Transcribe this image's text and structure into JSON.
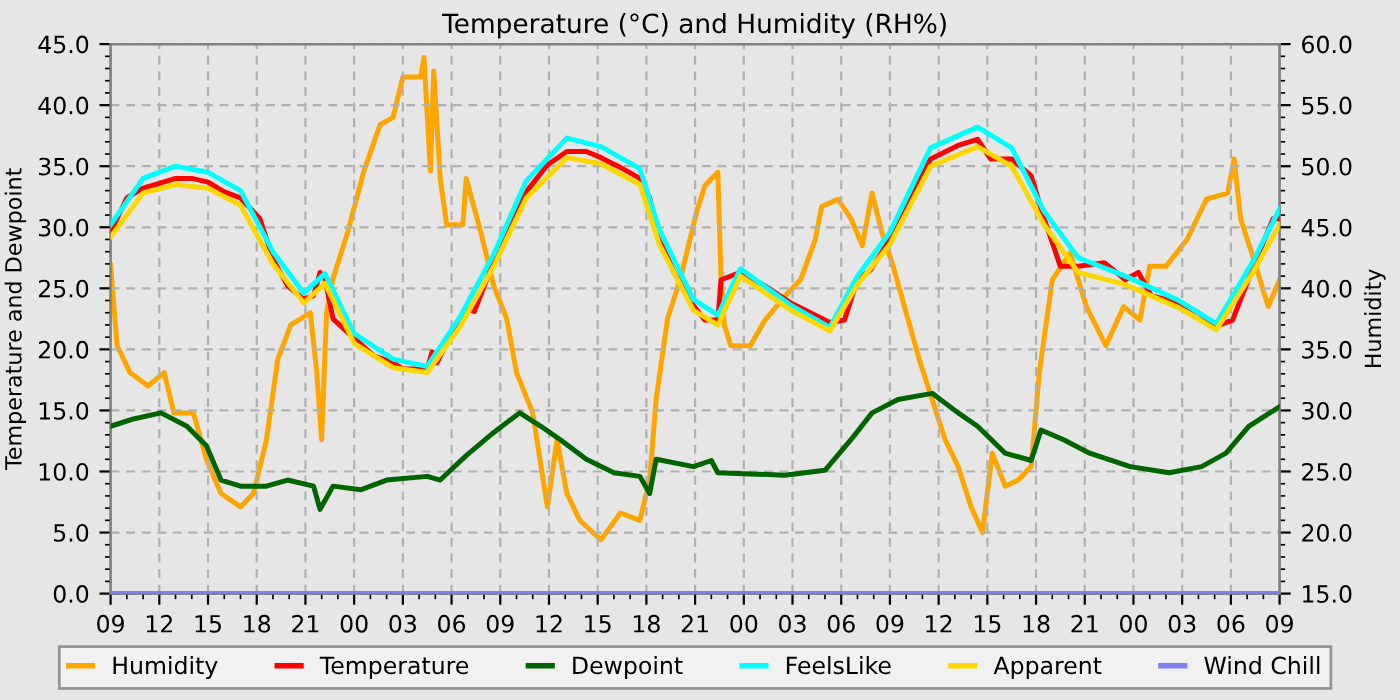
{
  "chart_data": {
    "type": "line",
    "title": "Temperature (°C) and Humidity (RH%)",
    "ylabel": "Temperature and Dewpoint",
    "y2label": "Humidity",
    "xlim": [
      9,
      81
    ],
    "xticks": [
      {
        "value": 9,
        "label": "09"
      },
      {
        "value": 12,
        "label": "12"
      },
      {
        "value": 15,
        "label": "15"
      },
      {
        "value": 18,
        "label": "18"
      },
      {
        "value": 21,
        "label": "21"
      },
      {
        "value": 24,
        "label": "00"
      },
      {
        "value": 27,
        "label": "03"
      },
      {
        "value": 30,
        "label": "06"
      },
      {
        "value": 33,
        "label": "09"
      },
      {
        "value": 36,
        "label": "12"
      },
      {
        "value": 39,
        "label": "15"
      },
      {
        "value": 42,
        "label": "18"
      },
      {
        "value": 45,
        "label": "21"
      },
      {
        "value": 48,
        "label": "00"
      },
      {
        "value": 51,
        "label": "03"
      },
      {
        "value": 54,
        "label": "06"
      },
      {
        "value": 57,
        "label": "09"
      },
      {
        "value": 60,
        "label": "12"
      },
      {
        "value": 63,
        "label": "15"
      },
      {
        "value": 66,
        "label": "18"
      },
      {
        "value": 69,
        "label": "21"
      },
      {
        "value": 72,
        "label": "00"
      },
      {
        "value": 75,
        "label": "03"
      },
      {
        "value": 78,
        "label": "06"
      },
      {
        "value": 81,
        "label": "09"
      }
    ],
    "ylim": [
      0,
      45
    ],
    "yticks": [
      {
        "value": 0,
        "label": "0.0"
      },
      {
        "value": 5,
        "label": "5.0"
      },
      {
        "value": 10,
        "label": "10.0"
      },
      {
        "value": 15,
        "label": "15.0"
      },
      {
        "value": 20,
        "label": "20.0"
      },
      {
        "value": 25,
        "label": "25.0"
      },
      {
        "value": 30,
        "label": "30.0"
      },
      {
        "value": 35,
        "label": "35.0"
      },
      {
        "value": 40,
        "label": "40.0"
      },
      {
        "value": 45,
        "label": "45.0"
      }
    ],
    "y2lim": [
      15,
      60
    ],
    "y2ticks": [
      {
        "value": 15,
        "label": "15.0"
      },
      {
        "value": 20,
        "label": "20.0"
      },
      {
        "value": 25,
        "label": "25.0"
      },
      {
        "value": 30,
        "label": "30.0"
      },
      {
        "value": 35,
        "label": "35.0"
      },
      {
        "value": 40,
        "label": "40.0"
      },
      {
        "value": 45,
        "label": "45.0"
      },
      {
        "value": 50,
        "label": "50.0"
      },
      {
        "value": 55,
        "label": "55.0"
      },
      {
        "value": 60,
        "label": "60.0"
      }
    ],
    "grid": true,
    "legend": "bottom",
    "line_style": "solid",
    "marker": "none",
    "series": [
      {
        "name": "Humidity",
        "color": "#ffa500",
        "axis": "y2",
        "x": [
          9,
          9.4,
          10.2,
          11.3,
          12.3,
          12.9,
          14.1,
          14.9,
          15.8,
          17,
          17.8,
          18.6,
          19.3,
          20.1,
          21.3,
          21.7,
          22,
          22.3,
          22.7,
          23.6,
          24.6,
          25.6,
          26.4,
          27,
          28.1,
          28.3,
          28.7,
          28.9,
          29.3,
          29.7,
          30.7,
          30.9,
          31.8,
          32.6,
          33.4,
          34,
          35,
          35.9,
          36.5,
          37.1,
          37.9,
          39.2,
          40.4,
          41.6,
          42.2,
          42.6,
          43.3,
          44.1,
          45.1,
          45.6,
          46.4,
          46.6,
          46.8,
          47.2,
          48.4,
          49.3,
          50.7,
          51.5,
          52.4,
          52.8,
          53.8,
          54.6,
          55.3,
          55.9,
          56.5,
          57.2,
          58,
          58.8,
          59.6,
          60.4,
          61.2,
          62,
          62.7,
          63.3,
          64.1,
          64.9,
          65.7,
          66.2,
          67,
          68.1,
          69.1,
          70.3,
          71.4,
          72.4,
          73,
          74,
          75.3,
          76.5,
          77.8,
          78.2,
          78.6,
          79.4,
          80.3,
          81
        ],
        "values": [
          41.9,
          35.3,
          33.1,
          32,
          33.1,
          29.8,
          29.8,
          26,
          23.2,
          22.1,
          23.2,
          27.6,
          34.2,
          37,
          38,
          33.1,
          27.6,
          38,
          40.8,
          44.6,
          49.6,
          53.4,
          54,
          57.3,
          57.3,
          58.9,
          49.6,
          57.8,
          49,
          45.2,
          45.2,
          49,
          44.6,
          40.2,
          37.5,
          33.1,
          29.8,
          22.1,
          27.6,
          23.2,
          21,
          19.4,
          21.6,
          21,
          24.3,
          30.9,
          37.5,
          40.8,
          46.3,
          48.4,
          49.5,
          40.8,
          37,
          35.3,
          35.3,
          37.4,
          39.6,
          40.7,
          44,
          46.7,
          47.3,
          45.7,
          43.5,
          47.8,
          44.6,
          41.8,
          38,
          34.2,
          30.9,
          27.6,
          25.4,
          22.1,
          20,
          26.5,
          23.8,
          24.3,
          25.4,
          33.1,
          40.7,
          42.9,
          38.5,
          35.3,
          38.5,
          37.4,
          41.8,
          41.8,
          44,
          47.3,
          47.8,
          50.6,
          45.7,
          42.4,
          38.5,
          40.7
        ]
      },
      {
        "name": "Temperature",
        "color": "#ff0000",
        "x": [
          9,
          10,
          11,
          12,
          13,
          14,
          15,
          16,
          17,
          18.2,
          19,
          19.9,
          20.9,
          21.5,
          21.9,
          22.2,
          22.7,
          24,
          25.2,
          26.4,
          27,
          28.5,
          28.8,
          29.1,
          29.5,
          30.5,
          31,
          31.4,
          32.6,
          33.6,
          34.6,
          35.9,
          37.1,
          38.3,
          39.2,
          40.4,
          41.6,
          42.2,
          42.8,
          43.7,
          44.9,
          45.6,
          46.4,
          46.6,
          47.8,
          49.3,
          50.9,
          52.1,
          53.3,
          54.2,
          55,
          55.8,
          57,
          58.3,
          59.5,
          61.2,
          62.4,
          63.2,
          64.5,
          65.7,
          66.5,
          67.5,
          68.6,
          70.2,
          71.5,
          72.3,
          73.1,
          74.8,
          76,
          77.1,
          78.1,
          79.4,
          80.6,
          81
        ],
        "values": [
          29.6,
          32.4,
          33.2,
          33.6,
          34,
          34,
          33.7,
          32.9,
          32.4,
          30.7,
          27.4,
          25.2,
          24.1,
          24.4,
          26.3,
          25.8,
          22.5,
          20.9,
          19.5,
          18.9,
          18.4,
          18.4,
          19.8,
          18.9,
          20,
          22.2,
          23.3,
          23.1,
          27.2,
          30.2,
          32.9,
          35.1,
          36.2,
          36.2,
          35.7,
          34.9,
          34,
          32.4,
          29.1,
          26.3,
          23.6,
          22.4,
          22.4,
          25.7,
          26.3,
          25.2,
          23.8,
          23,
          22.2,
          22.4,
          25.7,
          26.5,
          29,
          32.3,
          35.6,
          36.7,
          37.2,
          35.6,
          35.6,
          34.2,
          30.7,
          26.8,
          26.8,
          27.1,
          25.7,
          26.3,
          24.4,
          23.8,
          23,
          21.9,
          22.4,
          26.8,
          30.7,
          30.7
        ]
      },
      {
        "name": "Dewpoint",
        "color": "#006400",
        "x": [
          9,
          10.4,
          12.1,
          13.7,
          14.9,
          15.8,
          17,
          18.6,
          19.9,
          21.5,
          21.9,
          22.7,
          24.4,
          26,
          28.5,
          29.3,
          30.9,
          32.6,
          34.2,
          35.5,
          36.7,
          38.3,
          40,
          41.6,
          42.2,
          42.6,
          44.9,
          46,
          46.4,
          50.5,
          53,
          54.6,
          55.9,
          57.5,
          59.6,
          61.2,
          62.4,
          64.1,
          65.7,
          66.3,
          67.7,
          69.3,
          71.8,
          74.2,
          76.2,
          77.7,
          79.1,
          81
        ],
        "values": [
          13.7,
          14.3,
          14.8,
          13.7,
          12.1,
          9.3,
          8.8,
          8.8,
          9.3,
          8.8,
          6.9,
          8.8,
          8.5,
          9.3,
          9.6,
          9.3,
          11.3,
          13.2,
          14.8,
          13.7,
          12.6,
          11,
          9.9,
          9.6,
          8.2,
          11,
          10.4,
          10.9,
          9.9,
          9.7,
          10.1,
          12.6,
          14.8,
          15.9,
          16.4,
          14.8,
          13.7,
          11.5,
          10.9,
          13.4,
          12.6,
          11.5,
          10.4,
          9.9,
          10.4,
          11.5,
          13.7,
          15.3
        ]
      },
      {
        "name": "FeelsLike",
        "color": "#00ffff",
        "x": [
          9,
          11,
          13,
          15,
          17,
          19,
          20.9,
          22.2,
          24,
          26.4,
          28.5,
          30.5,
          32.6,
          34.6,
          37.1,
          39.2,
          41.6,
          42.8,
          44.9,
          46.4,
          47.8,
          50.9,
          53.3,
          55,
          57,
          59.5,
          62.4,
          64.5,
          66.5,
          68.6,
          71.5,
          74.8,
          77.1,
          79.4,
          81
        ],
        "values": [
          30.2,
          34,
          35,
          34.5,
          33,
          28,
          24.6,
          26.2,
          21.3,
          19.2,
          18.6,
          22.6,
          27.8,
          33.8,
          37.3,
          36.6,
          34.8,
          29.8,
          24.1,
          22.8,
          26.6,
          23.6,
          21.8,
          26,
          29.6,
          36.5,
          38.2,
          36.5,
          31.3,
          27.5,
          26,
          24,
          22.1,
          27.3,
          31.5
        ]
      },
      {
        "name": "Apparent",
        "color": "#ffd700",
        "x": [
          9,
          11,
          13,
          15,
          17,
          19,
          20.9,
          22.2,
          24,
          26.4,
          28.5,
          30.5,
          32.6,
          34.6,
          37.1,
          39.2,
          41.6,
          42.8,
          44.9,
          46.4,
          47.8,
          50.9,
          53.3,
          55,
          57,
          59.5,
          62.4,
          64.5,
          66.5,
          68.6,
          71.5,
          74.8,
          77.1,
          79.4,
          81
        ],
        "values": [
          29.2,
          32.8,
          33.5,
          33.2,
          31.8,
          27,
          23.8,
          25.4,
          20.5,
          18.5,
          18.1,
          21.8,
          26.8,
          32.4,
          35.7,
          35.2,
          33.5,
          28.6,
          23.2,
          22,
          26,
          23.2,
          21.5,
          25.3,
          28.6,
          35,
          36.6,
          35,
          30.2,
          26.3,
          25.3,
          23.4,
          21.6,
          26.4,
          30.2
        ]
      },
      {
        "name": "Wind Chill",
        "color": "#8080f0",
        "x": [
          9,
          81
        ],
        "values": [
          0,
          0
        ]
      }
    ]
  }
}
